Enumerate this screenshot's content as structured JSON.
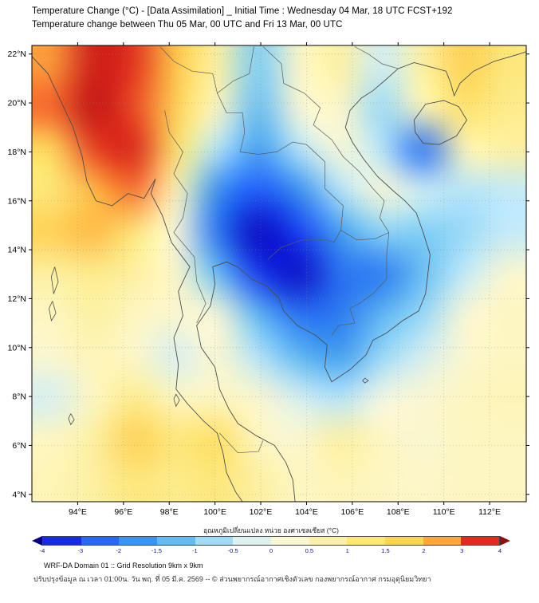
{
  "header": {
    "title_line1": "Temperature Change (°C) - [Data Assimilation] _ Initial Time : Wednesday 04 Mar, 18 UTC FCST+192",
    "title_line2": "Temperature change between Thu 05 Mar, 00 UTC and Fri 13 Mar, 00 UTC"
  },
  "chart_data": {
    "type": "heatmap",
    "title": "Temperature Change (°C) - [Data Assimilation] _ Initial Time : Wednesday 04 Mar, 18 UTC FCST+192",
    "subtitle": "Temperature change between Thu 05 Mar, 00 UTC and Fri 13 Mar, 00 UTC",
    "x_ticks": {
      "values": [
        94,
        96,
        98,
        100,
        102,
        104,
        106,
        108,
        110,
        112
      ],
      "labels": [
        "94°E",
        "96°E",
        "98°E",
        "100°E",
        "102°E",
        "104°E",
        "106°E",
        "108°E",
        "110°E",
        "112°E"
      ]
    },
    "y_ticks": {
      "values": [
        4,
        6,
        8,
        10,
        12,
        14,
        16,
        18,
        20,
        22
      ],
      "labels": [
        "4°N",
        "6°N",
        "8°N",
        "10°N",
        "12°N",
        "14°N",
        "16°N",
        "18°N",
        "20°N",
        "22°N"
      ]
    },
    "lon_range": [
      92.0,
      113.6
    ],
    "lat_range": [
      3.7,
      22.35
    ],
    "grid": {
      "lon_cols": [
        92.0,
        94.0,
        95.9,
        97.9,
        99.9,
        101.8,
        103.8,
        105.8,
        107.7,
        109.7,
        111.6,
        113.6
      ],
      "lat_rows": [
        22.3,
        20.4,
        18.6,
        16.7,
        14.9,
        13.0,
        11.2,
        9.3,
        7.5,
        5.6,
        3.7
      ],
      "values": [
        [
          2.6,
          3.8,
          3.4,
          2.0,
          0.8,
          -1.0,
          0.4,
          0.8,
          -0.4,
          0.8,
          1.8,
          1.2
        ],
        [
          3.0,
          4.0,
          3.2,
          1.8,
          0.5,
          -1.2,
          0.2,
          0.4,
          -0.8,
          0.6,
          1.4,
          1.0
        ],
        [
          1.6,
          3.3,
          3.6,
          1.4,
          -0.6,
          -1.6,
          -0.6,
          0.2,
          -0.6,
          -2.3,
          0.6,
          0.8
        ],
        [
          1.2,
          2.2,
          2.9,
          0.6,
          -1.8,
          -2.8,
          -1.8,
          -0.6,
          0.2,
          -0.4,
          -0.6,
          -0.5
        ],
        [
          1.8,
          2.2,
          1.2,
          0.1,
          -2.2,
          -4.0,
          -3.2,
          -1.6,
          -0.9,
          -1.0,
          -0.8,
          -0.5
        ],
        [
          0.8,
          1.0,
          0.8,
          0.4,
          -1.2,
          -3.3,
          -3.9,
          -2.3,
          -2.1,
          -1.2,
          -0.5,
          0.3
        ],
        [
          0.5,
          0.8,
          0.5,
          0.3,
          0.2,
          -1.3,
          -2.3,
          -2.1,
          -1.3,
          -0.8,
          0.2,
          0.5
        ],
        [
          0.3,
          0.6,
          0.4,
          -0.3,
          0.3,
          -0.6,
          -1.3,
          -1.6,
          -0.8,
          -0.3,
          0.3,
          0.5
        ],
        [
          -0.3,
          0.5,
          1.0,
          0.5,
          0.5,
          0.3,
          -0.3,
          -0.6,
          0.0,
          0.3,
          0.5,
          0.6
        ],
        [
          0.5,
          0.8,
          1.8,
          1.2,
          1.5,
          0.5,
          0.3,
          0.8,
          0.5,
          0.3,
          0.5,
          0.5
        ],
        [
          0.6,
          0.8,
          1.2,
          1.0,
          1.2,
          0.8,
          0.5,
          0.6,
          0.5,
          0.4,
          0.5,
          0.5
        ]
      ]
    },
    "colormap_stops": [
      [
        -4.6,
        "#000080"
      ],
      [
        -4,
        "#0a0ac0"
      ],
      [
        -3,
        "#1e50ff"
      ],
      [
        -2,
        "#2f80ee"
      ],
      [
        -1.5,
        "#49a8f0"
      ],
      [
        -1,
        "#7fcdf5"
      ],
      [
        -0.5,
        "#c3eaf9"
      ],
      [
        0,
        "#f6f7e4"
      ],
      [
        0.5,
        "#fdf6c2"
      ],
      [
        1,
        "#fdec8d"
      ],
      [
        1.5,
        "#fedf63"
      ],
      [
        2,
        "#fec84b"
      ],
      [
        2.5,
        "#fda63f"
      ],
      [
        3,
        "#f4652c"
      ],
      [
        3.5,
        "#df2c1d"
      ],
      [
        4,
        "#c11616"
      ],
      [
        4.6,
        "#8f0d10"
      ]
    ],
    "colorbar": {
      "label": "อุณหภูมิเปลี่ยนแปลง หน่วย องศาเซลเซียส (°C)",
      "boundaries": [
        -4,
        -3,
        -2,
        -1.5,
        -1,
        -0.5,
        0,
        0.5,
        1,
        1.5,
        2,
        3,
        4
      ],
      "tick_labels": [
        "-4",
        "-3",
        "-2",
        "-1.5",
        "-1",
        "-0.5",
        "0",
        "0.5",
        "1",
        "1.5",
        "2",
        "3",
        "4"
      ]
    }
  },
  "map_overlay": {
    "coastlines": [
      [
        [
          92.0,
          21.9
        ],
        [
          92.7,
          21.2
        ],
        [
          93.2,
          20.2
        ],
        [
          93.8,
          19.0
        ],
        [
          94.2,
          17.8
        ],
        [
          94.4,
          16.8
        ],
        [
          94.8,
          16.0
        ],
        [
          95.5,
          15.8
        ],
        [
          96.2,
          16.3
        ],
        [
          96.9,
          16.1
        ],
        [
          97.4,
          16.9
        ],
        [
          97.2,
          16.3
        ],
        [
          97.7,
          15.4
        ],
        [
          98.1,
          14.3
        ],
        [
          98.9,
          13.3
        ],
        [
          98.4,
          12.3
        ],
        [
          98.6,
          11.3
        ],
        [
          98.2,
          10.4
        ],
        [
          98.4,
          9.3
        ],
        [
          98.3,
          8.3
        ],
        [
          98.8,
          7.7
        ],
        [
          99.5,
          7.0
        ],
        [
          100.1,
          6.5
        ],
        [
          100.35,
          5.7
        ],
        [
          100.5,
          4.9
        ],
        [
          100.9,
          4.1
        ],
        [
          101.2,
          3.7
        ]
      ],
      [
        [
          103.5,
          3.7
        ],
        [
          103.4,
          4.6
        ],
        [
          103.1,
          5.3
        ],
        [
          102.6,
          6.0
        ],
        [
          101.8,
          6.4
        ],
        [
          101.0,
          6.9
        ],
        [
          100.6,
          7.5
        ],
        [
          100.2,
          8.3
        ],
        [
          100.0,
          9.2
        ],
        [
          99.4,
          10.0
        ],
        [
          99.2,
          10.9
        ],
        [
          99.8,
          11.7
        ],
        [
          100.0,
          12.6
        ],
        [
          99.9,
          13.3
        ],
        [
          100.5,
          13.5
        ],
        [
          101.0,
          13.3
        ],
        [
          101.6,
          12.8
        ],
        [
          102.3,
          12.5
        ],
        [
          102.8,
          12.0
        ],
        [
          103.0,
          11.5
        ],
        [
          103.6,
          10.9
        ],
        [
          104.4,
          10.5
        ],
        [
          104.9,
          10.1
        ],
        [
          104.8,
          9.2
        ],
        [
          105.1,
          8.6
        ],
        [
          105.9,
          9.1
        ],
        [
          106.6,
          9.7
        ],
        [
          106.9,
          10.3
        ],
        [
          107.5,
          10.6
        ],
        [
          108.2,
          11.1
        ],
        [
          108.9,
          11.5
        ],
        [
          109.2,
          12.2
        ],
        [
          109.3,
          13.0
        ],
        [
          109.4,
          13.8
        ],
        [
          109.1,
          14.7
        ],
        [
          108.8,
          15.5
        ],
        [
          108.3,
          16.0
        ],
        [
          107.8,
          16.4
        ],
        [
          107.1,
          17.0
        ],
        [
          106.5,
          17.7
        ],
        [
          106.0,
          18.4
        ],
        [
          105.7,
          19.0
        ],
        [
          105.9,
          19.7
        ],
        [
          106.4,
          20.2
        ],
        [
          106.9,
          20.5
        ],
        [
          107.4,
          20.9
        ],
        [
          108.0,
          21.4
        ]
      ],
      [
        [
          108.0,
          21.4
        ],
        [
          108.7,
          21.65
        ],
        [
          109.5,
          21.45
        ],
        [
          110.1,
          21.3
        ],
        [
          110.3,
          20.8
        ],
        [
          110.45,
          20.3
        ],
        [
          110.7,
          20.8
        ],
        [
          111.3,
          21.3
        ],
        [
          112.2,
          21.7
        ],
        [
          113.3,
          22.0
        ],
        [
          113.6,
          22.1
        ]
      ],
      [
        [
          108.7,
          19.3
        ],
        [
          109.2,
          19.95
        ],
        [
          110.0,
          20.1
        ],
        [
          110.65,
          19.85
        ],
        [
          111.0,
          19.3
        ],
        [
          110.55,
          18.65
        ],
        [
          109.8,
          18.3
        ],
        [
          109.1,
          18.35
        ],
        [
          108.75,
          18.8
        ],
        [
          108.7,
          19.3
        ]
      ]
    ],
    "borders": [
      [
        [
          97.8,
          19.7
        ],
        [
          98.0,
          18.8
        ],
        [
          98.6,
          18.0
        ],
        [
          98.2,
          17.1
        ],
        [
          98.8,
          16.3
        ],
        [
          98.6,
          15.3
        ],
        [
          98.2,
          14.7
        ],
        [
          99.1,
          13.7
        ],
        [
          99.2,
          12.7
        ],
        [
          99.6,
          11.8
        ],
        [
          99.2,
          11.0
        ]
      ],
      [
        [
          100.1,
          20.4
        ],
        [
          100.5,
          19.6
        ],
        [
          101.2,
          19.6
        ],
        [
          101.3,
          18.8
        ],
        [
          101.1,
          18.0
        ],
        [
          101.9,
          17.9
        ],
        [
          102.7,
          18.0
        ],
        [
          103.4,
          18.4
        ],
        [
          104.0,
          18.3
        ],
        [
          104.8,
          17.6
        ],
        [
          104.8,
          16.5
        ],
        [
          105.6,
          15.8
        ],
        [
          105.5,
          14.8
        ],
        [
          105.2,
          14.3
        ]
      ],
      [
        [
          102.3,
          13.6
        ],
        [
          102.9,
          14.1
        ],
        [
          103.8,
          14.4
        ],
        [
          104.9,
          14.4
        ],
        [
          105.2,
          14.3
        ]
      ],
      [
        [
          102.1,
          22.3
        ],
        [
          102.9,
          21.6
        ],
        [
          103.0,
          20.8
        ],
        [
          103.9,
          20.4
        ],
        [
          104.6,
          19.8
        ],
        [
          104.3,
          19.1
        ],
        [
          105.1,
          18.5
        ],
        [
          105.6,
          17.8
        ],
        [
          106.3,
          17.2
        ],
        [
          106.9,
          16.5
        ],
        [
          107.4,
          16.0
        ],
        [
          107.2,
          15.3
        ],
        [
          107.6,
          14.7
        ],
        [
          107.5,
          13.8
        ],
        [
          107.5,
          12.8
        ],
        [
          106.9,
          12.2
        ],
        [
          106.3,
          11.8
        ],
        [
          105.9,
          11.6
        ],
        [
          106.1,
          11.0
        ],
        [
          105.4,
          10.9
        ],
        [
          105.1,
          10.5
        ]
      ],
      [
        [
          108.0,
          21.4
        ],
        [
          107.3,
          21.6
        ],
        [
          106.7,
          22.0
        ],
        [
          106.1,
          22.3
        ]
      ],
      [
        [
          97.6,
          22.3
        ],
        [
          98.2,
          21.7
        ],
        [
          99.0,
          21.3
        ],
        [
          99.9,
          21.2
        ],
        [
          100.1,
          20.4
        ],
        [
          100.8,
          20.9
        ],
        [
          101.5,
          21.2
        ],
        [
          101.7,
          22.3
        ]
      ],
      [
        [
          100.2,
          6.5
        ],
        [
          101.0,
          5.7
        ],
        [
          101.9,
          5.75
        ],
        [
          102.1,
          6.2
        ]
      ],
      [
        [
          105.5,
          14.8
        ],
        [
          106.2,
          14.4
        ],
        [
          107.0,
          14.45
        ],
        [
          107.6,
          14.7
        ]
      ]
    ],
    "islands": [
      [
        [
          98.3,
          8.1
        ],
        [
          98.45,
          7.85
        ],
        [
          98.3,
          7.6
        ],
        [
          98.2,
          7.9
        ],
        [
          98.3,
          8.1
        ]
      ],
      [
        [
          93.0,
          13.3
        ],
        [
          93.15,
          12.7
        ],
        [
          92.95,
          12.2
        ],
        [
          92.85,
          12.9
        ],
        [
          93.0,
          13.3
        ]
      ],
      [
        [
          92.9,
          11.9
        ],
        [
          93.05,
          11.4
        ],
        [
          92.85,
          11.1
        ],
        [
          92.75,
          11.6
        ],
        [
          92.9,
          11.9
        ]
      ],
      [
        [
          93.7,
          7.3
        ],
        [
          93.85,
          7.05
        ],
        [
          93.7,
          6.85
        ],
        [
          93.6,
          7.1
        ],
        [
          93.7,
          7.3
        ]
      ],
      [
        [
          106.55,
          8.75
        ],
        [
          106.7,
          8.65
        ],
        [
          106.55,
          8.55
        ],
        [
          106.45,
          8.65
        ],
        [
          106.55,
          8.75
        ]
      ]
    ]
  },
  "footer": {
    "line1": "WRF-DA Domain 01 :: Grid Resolution 9km x 9km",
    "line2": "ปรับปรุงข้อมูล ณ เวลา 01:00น. วัน พฤ. ที่ 05 มี.ค. 2569 -- © ส่วนพยากรณ์อากาศเชิงตัวเลข กองพยากรณ์อากาศ กรมอุตุนิยมวิทยา"
  }
}
